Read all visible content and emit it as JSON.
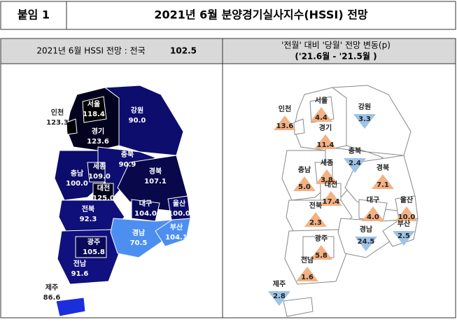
{
  "header": {
    "label": "붙임 1",
    "title": "2021년 6월 분양경기실사지수(HSSI) 전망"
  },
  "left_panel": {
    "title": "2021년 6월 HSSI 전망 : 전국",
    "national": "102.5",
    "regions": [
      {
        "name": "서울",
        "value": "118.4",
        "color": "#000000"
      },
      {
        "name": "인천",
        "value": "123.3",
        "color": "#000000"
      },
      {
        "name": "경기",
        "value": "123.6",
        "color": "#03031f"
      },
      {
        "name": "강원",
        "value": "90.0",
        "color": "#0d0d6e"
      },
      {
        "name": "충남",
        "value": "100.0",
        "color": "#0c0c6c"
      },
      {
        "name": "세종",
        "value": "109.0",
        "color": "#08084f"
      },
      {
        "name": "충북",
        "value": "90.9",
        "color": "#0d0d72"
      },
      {
        "name": "대전",
        "value": "125.0",
        "color": "#02021a"
      },
      {
        "name": "경북",
        "value": "107.1",
        "color": "#08084a"
      },
      {
        "name": "전북",
        "value": "92.3",
        "color": "#10107a"
      },
      {
        "name": "대구",
        "value": "104.0",
        "color": "#0a0a5a"
      },
      {
        "name": "울산",
        "value": "100.0",
        "color": "#0c0c66"
      },
      {
        "name": "광주",
        "value": "105.8",
        "color": "#0a0a58"
      },
      {
        "name": "경남",
        "value": "70.5",
        "color": "#4d8ff0"
      },
      {
        "name": "부산",
        "value": "104.1",
        "color": "#4d8ff0"
      },
      {
        "name": "전남",
        "value": "91.6",
        "color": "#10107e"
      },
      {
        "name": "제주",
        "value": "86.6",
        "color": "#1c2edc"
      }
    ]
  },
  "right_panel": {
    "title": "'전월' 대비 '당월' 전망 변동(p)",
    "subtitle": "('21.6월 - '21.5월 )",
    "up_color": "#f4b183",
    "down_color": "#9dc3e6",
    "regions": [
      {
        "name": "서울",
        "change": "4.4",
        "direction": "up"
      },
      {
        "name": "인천",
        "change": "13.6",
        "direction": "up"
      },
      {
        "name": "경기",
        "change": "11.4",
        "direction": "up"
      },
      {
        "name": "강원",
        "change": "3.3",
        "direction": "down"
      },
      {
        "name": "충남",
        "change": "5.0",
        "direction": "up"
      },
      {
        "name": "세종",
        "change": "3.8",
        "direction": "up"
      },
      {
        "name": "충북",
        "change": "2.4",
        "direction": "down"
      },
      {
        "name": "대전",
        "change": "17.4",
        "direction": "up"
      },
      {
        "name": "경북",
        "change": "7.1",
        "direction": "up"
      },
      {
        "name": "전북",
        "change": "2.3",
        "direction": "up"
      },
      {
        "name": "대구",
        "change": "4.0",
        "direction": "up"
      },
      {
        "name": "울산",
        "change": "10.0",
        "direction": "up"
      },
      {
        "name": "광주",
        "change": "5.8",
        "direction": "up"
      },
      {
        "name": "경남",
        "change": "24.5",
        "direction": "down"
      },
      {
        "name": "부산",
        "change": "2.5",
        "direction": "down"
      },
      {
        "name": "전남",
        "change": "1.6",
        "direction": "up"
      },
      {
        "name": "제주",
        "change": "2.8",
        "direction": "down"
      }
    ]
  }
}
